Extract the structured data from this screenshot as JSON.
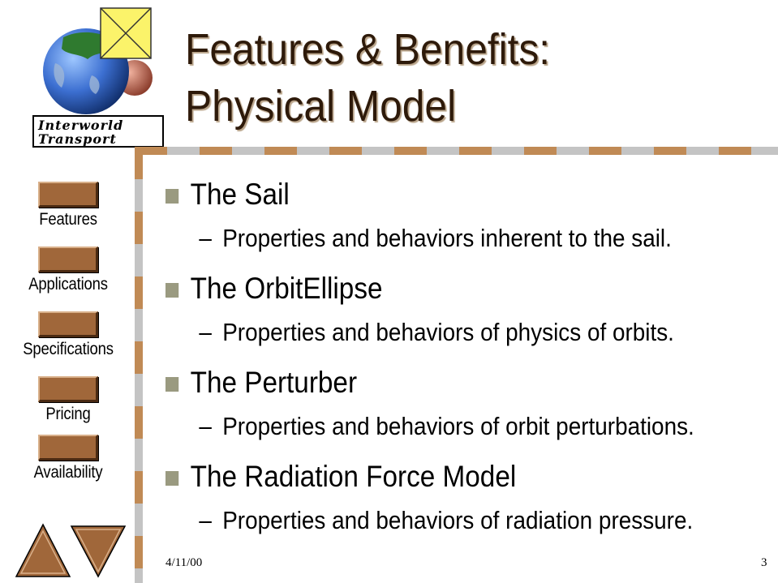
{
  "logo": {
    "line1": "Interworld",
    "line2": "Transport"
  },
  "title": {
    "line1": "Features & Benefits:",
    "line2": "Physical Model"
  },
  "nav": {
    "items": [
      {
        "label": "Features"
      },
      {
        "label": "Applications"
      },
      {
        "label": "Specifications"
      },
      {
        "label": "Pricing"
      },
      {
        "label": "Availability"
      }
    ],
    "prev_icon": "triangle-up-icon",
    "next_icon": "triangle-down-icon"
  },
  "bullets": [
    {
      "title": "The Sail",
      "sub": "Properties and behaviors inherent to the sail."
    },
    {
      "title": "The OrbitEllipse",
      "sub": "Properties and behaviors of physics of orbits."
    },
    {
      "title": "The Perturber",
      "sub": "Properties and behaviors of orbit perturbations."
    },
    {
      "title": "The Radiation Force Model",
      "sub": "Properties and behaviors of radiation pressure."
    }
  ],
  "sub_marker": "–",
  "footer": {
    "date": "4/11/00",
    "page": "3"
  },
  "colors": {
    "title": "#2e1a0a",
    "button": "#a0673a",
    "border_tan": "#c08a55",
    "border_gray": "#c4c4c4",
    "bullet_square": "#9a9a80"
  }
}
